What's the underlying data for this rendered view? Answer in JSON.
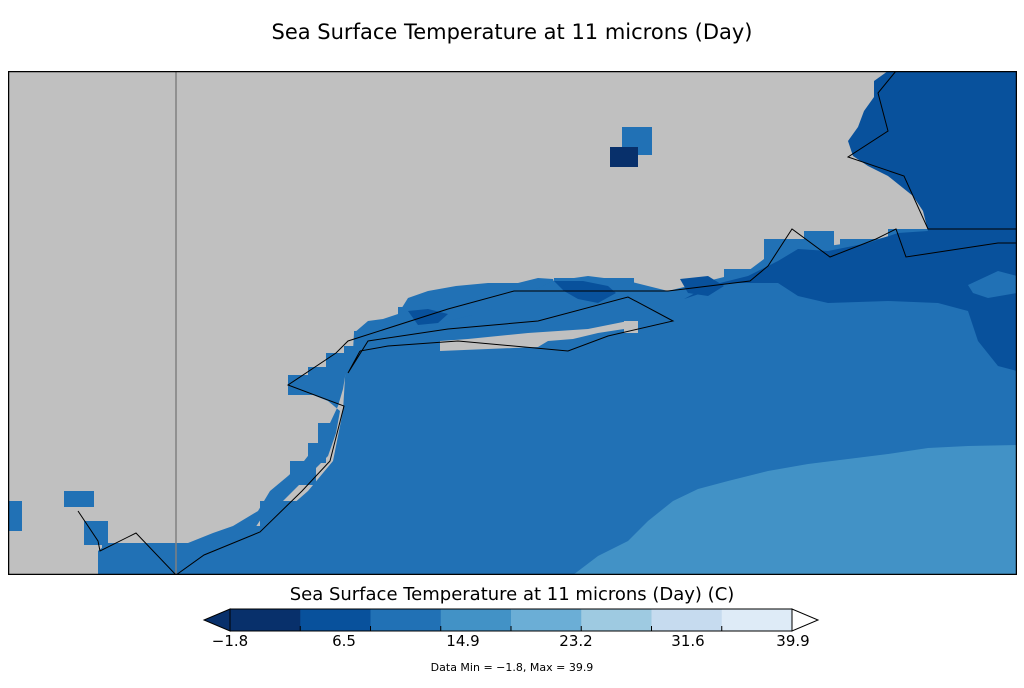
{
  "title": "Sea Surface Temperature at 11 microns (Day)",
  "colorbar": {
    "title": "Sea Surface Temperature at 11 microns (Day) (C)",
    "ticks": [
      "−1.8",
      "6.5",
      "14.9",
      "23.2",
      "31.6",
      "39.9"
    ],
    "colors": [
      "#08306b",
      "#08519c",
      "#2171b5",
      "#4292c6",
      "#6baed6",
      "#9ecae1",
      "#c6dbef",
      "#deebf7"
    ],
    "under_color": "#08306b",
    "over_color": "#ffffff"
  },
  "data_range_text": "Data Min = −1.8, Max = 39.9",
  "map": {
    "land_color": "#c0c0c0",
    "ocean_colors": {
      "near_shore": "#2171b5",
      "cold": "#08519c",
      "coldest": "#08306b",
      "warm": "#4292c6"
    }
  }
}
